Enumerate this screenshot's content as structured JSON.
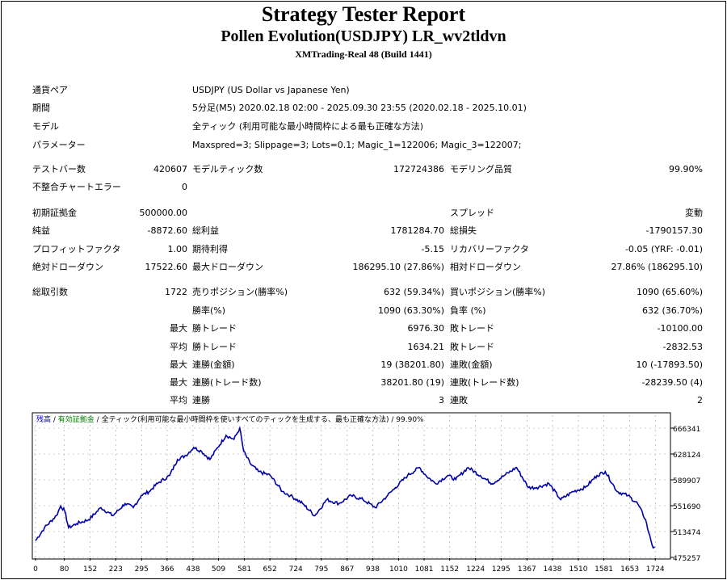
{
  "header": {
    "title": "Strategy Tester Report",
    "subtitle": "Pollen Evolution(USDJPY) LR_wv2tldvn",
    "server": "XMTrading-Real 48 (Build 1441)"
  },
  "info": [
    {
      "label": "通貨ペア",
      "value": "USDJPY (US Dollar vs Japanese Yen)"
    },
    {
      "label": "期間",
      "value": "5分足(M5) 2020.02.18 02:00 - 2025.09.30 23:55 (2020.02.18 - 2025.10.01)"
    },
    {
      "label": "モデル",
      "value": "全ティック (利用可能な最小時間枠による最も正確な方法)"
    },
    {
      "label": "パラメーター",
      "value": "Maxspred=3; Slippage=3; Lots=0.1; Magic_1=122006; Magic_3=122007;"
    }
  ],
  "stats": [
    [
      "テストバー数",
      "420607",
      "モデルティック数",
      "172724386",
      "モデリング品質",
      "99.90%"
    ],
    [
      "不整合チャートエラー",
      "0",
      "",
      "",
      "",
      ""
    ],
    [
      "初期証拠金",
      "500000.00",
      "",
      "",
      "スプレッド",
      "変動"
    ],
    [
      "純益",
      "-8872.60",
      "総利益",
      "1781284.70",
      "総損失",
      "-1790157.30"
    ],
    [
      "プロフィットファクタ",
      "1.00",
      "期待利得",
      "-5.15",
      "リカバリーファクタ",
      "-0.05 (YRF: -0.01)"
    ],
    [
      "絶対ドローダウン",
      "17522.60",
      "最大ドローダウン",
      "186295.10 (27.86%)",
      "相対ドローダウン",
      "27.86% (186295.10)"
    ],
    [
      "総取引数",
      "1722",
      "売りポジション(勝率%)",
      "632 (59.34%)",
      "買いポジション(勝率%)",
      "1090 (65.60%)"
    ],
    [
      "",
      "",
      "勝率(%)",
      "1090 (63.30%)",
      "負率 (%)",
      "632 (36.70%)"
    ],
    [
      "",
      "最大",
      "勝トレード",
      "6976.30",
      "敗トレード",
      "-10100.00"
    ],
    [
      "",
      "平均",
      "勝トレード",
      "1634.21",
      "敗トレード",
      "-2832.53"
    ],
    [
      "",
      "最大",
      "連勝(金額)",
      "19 (38201.80)",
      "連敗(金額)",
      "10 (-17893.50)"
    ],
    [
      "",
      "最大",
      "連勝(トレード数)",
      "38201.80 (19)",
      "連敗(トレード数)",
      "-28239.50 (4)"
    ],
    [
      "",
      "平均",
      "連勝",
      "3",
      "連敗",
      "2"
    ]
  ],
  "chart_data": {
    "type": "line",
    "legend": {
      "balance": "残高",
      "equity": "有効証拠金",
      "model": "全ティック(利用可能な最小時間枠を使いすべてのティックを生成する、最も正確な方法)",
      "quality": "99.90%",
      "separator": " / "
    },
    "colors": {
      "balance": "#0000a8",
      "equity": "#008000",
      "grid": "#a0a0a0"
    },
    "xlabel": "",
    "ylabel": "",
    "xticks": [
      0,
      80,
      152,
      223,
      295,
      366,
      438,
      509,
      581,
      652,
      724,
      795,
      867,
      938,
      1010,
      1081,
      1152,
      1224,
      1295,
      1367,
      1438,
      1510,
      1581,
      1653,
      1724
    ],
    "yticks": [
      475257,
      513474,
      551690,
      589907,
      628124,
      666341
    ],
    "xlim": [
      0,
      1755
    ],
    "ylim": [
      475257,
      671000
    ],
    "grid": true,
    "series": [
      {
        "name": "残高",
        "x": [
          0,
          25,
          58,
          70,
          81,
          92,
          114,
          148,
          182,
          215,
          249,
          272,
          294,
          316,
          339,
          373,
          395,
          418,
          440,
          462,
          485,
          507,
          530,
          552,
          568,
          579,
          597,
          620,
          653,
          687,
          709,
          743,
          777,
          810,
          844,
          878,
          911,
          945,
          979,
          1001,
          1035,
          1068,
          1086,
          1113,
          1147,
          1169,
          1203,
          1237,
          1270,
          1304,
          1338,
          1371,
          1394,
          1428,
          1461,
          1495,
          1529,
          1562,
          1585,
          1618,
          1648,
          1675,
          1697,
          1705,
          1712,
          1718,
          1722
        ],
        "y": [
          500000,
          519153,
          536958,
          551202,
          544080,
          519153,
          525088,
          531023,
          548828,
          536958,
          554763,
          548828,
          566633,
          572568,
          584438,
          596308,
          620048,
          625983,
          637853,
          631918,
          620048,
          637853,
          655658,
          649723,
          666341,
          631918,
          614113,
          602243,
          596308,
          572568,
          566633,
          554763,
          536958,
          560698,
          554763,
          566633,
          560698,
          548828,
          566633,
          578503,
          596308,
          608178,
          596308,
          584438,
          596308,
          590373,
          608178,
          596308,
          584438,
          596308,
          608178,
          578503,
          578503,
          584438,
          560698,
          572568,
          578503,
          596308,
          602243,
          572568,
          566633,
          554763,
          531023,
          513218,
          500000,
          489478,
          491127
        ]
      }
    ]
  }
}
